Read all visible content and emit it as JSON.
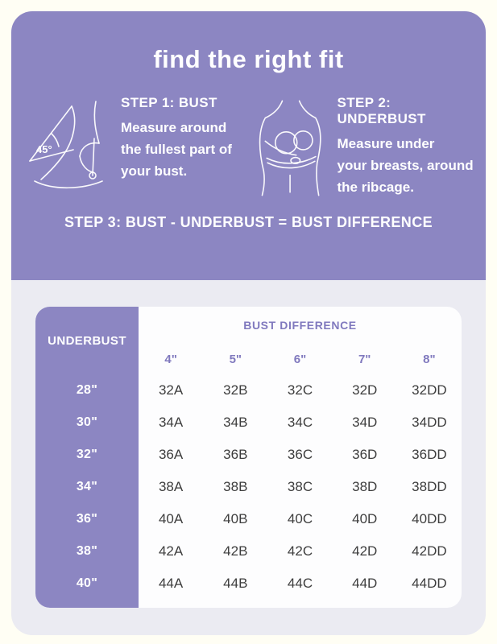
{
  "colors": {
    "purple": "#8C86C2",
    "panel_gray": "#EBEBF2",
    "card_white": "#FDFDFE",
    "page_cream": "#FFFEF4",
    "purple_text": "#8079BE",
    "cell_text": "#3D3D3D"
  },
  "header": {
    "title": "find the right fit",
    "steps": [
      {
        "heading": "STEP 1: BUST",
        "angle_label": "45°",
        "lines": [
          "Measure around",
          "the fullest part of",
          "your bust."
        ]
      },
      {
        "heading": "STEP 2: UNDERBUST",
        "lines": [
          "Measure under",
          "your breasts, around",
          "the ribcage."
        ]
      }
    ],
    "step3": "STEP 3: BUST - UNDERBUST = BUST DIFFERENCE"
  },
  "table": {
    "row_header_label": "UNDERBUST",
    "group_label": "BUST DIFFERENCE",
    "columns": [
      "4\"",
      "5\"",
      "6\"",
      "7\"",
      "8\""
    ],
    "rows": [
      {
        "underbust": "28\"",
        "sizes": [
          "32A",
          "32B",
          "32C",
          "32D",
          "32DD"
        ]
      },
      {
        "underbust": "30\"",
        "sizes": [
          "34A",
          "34B",
          "34C",
          "34D",
          "34DD"
        ]
      },
      {
        "underbust": "32\"",
        "sizes": [
          "36A",
          "36B",
          "36C",
          "36D",
          "36DD"
        ]
      },
      {
        "underbust": "34\"",
        "sizes": [
          "38A",
          "38B",
          "38C",
          "38D",
          "38DD"
        ]
      },
      {
        "underbust": "36\"",
        "sizes": [
          "40A",
          "40B",
          "40C",
          "40D",
          "40DD"
        ]
      },
      {
        "underbust": "38\"",
        "sizes": [
          "42A",
          "42B",
          "42C",
          "42D",
          "42DD"
        ]
      },
      {
        "underbust": "40\"",
        "sizes": [
          "44A",
          "44B",
          "44C",
          "44D",
          "44DD"
        ]
      }
    ]
  }
}
